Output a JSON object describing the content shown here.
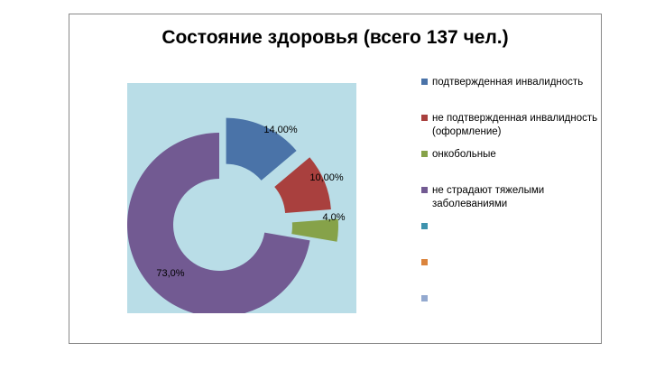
{
  "chart_data": {
    "type": "pie",
    "variant": "exploded-doughnut",
    "title": "Состояние здоровья (всего 137 чел.)",
    "slices": [
      {
        "label": "подтвержденная инвалидность",
        "value": 14,
        "data_label": "14,00%",
        "color": "#4A73A8"
      },
      {
        "label": "не подтвержденная инвалидность (оформление)",
        "value": 10,
        "data_label": "10,00%",
        "color": "#A9403E"
      },
      {
        "label": "онкобольные",
        "value": 4,
        "data_label": "4,0%",
        "color": "#86A249"
      },
      {
        "label": "не страдают тяжелыми заболеваниями",
        "value": 73,
        "data_label": "73,0%",
        "color": "#725A92"
      }
    ],
    "empty_legend_entries": [
      {
        "label": "",
        "color": "#3E93AE"
      },
      {
        "label": "",
        "color": "#DB843D"
      },
      {
        "label": "",
        "color": "#93A9CF"
      }
    ],
    "plot_background": "#B9DDE7",
    "legend_placement": "right"
  }
}
